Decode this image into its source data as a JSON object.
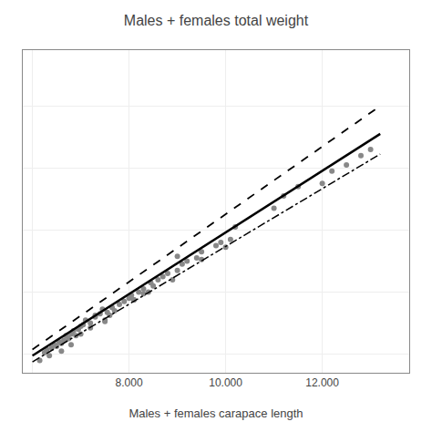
{
  "chart_data": {
    "type": "scatter",
    "title": "Males + females total weight",
    "xlabel": "Males + females carapace length",
    "grid": true,
    "tick_labels": "x",
    "xlim": [
      5800,
      13800
    ],
    "ylim": [
      5400,
      15800
    ],
    "xticks": [
      {
        "value": 6000,
        "label": null
      },
      {
        "value": 8000,
        "label": "8.000"
      },
      {
        "value": 10000,
        "label": "10.000"
      },
      {
        "value": 12000,
        "label": "12.000"
      }
    ],
    "yticks": [
      6000,
      8000,
      10000,
      12000,
      14000
    ],
    "series": [
      {
        "type": "scatter",
        "marker": "circle",
        "color": "#888888",
        "x": [
          6150,
          6250,
          6300,
          6350,
          6400,
          6450,
          6500,
          6550,
          6600,
          6650,
          6700,
          6750,
          6800,
          6850,
          6900,
          6950,
          7000,
          7050,
          7100,
          7200,
          7300,
          7400,
          7450,
          7500,
          7550,
          7600,
          7650,
          7700,
          7800,
          7900,
          8000,
          8050,
          8100,
          8200,
          8300,
          8400,
          8450,
          8500,
          8600,
          8700,
          8800,
          8900,
          9000,
          9100,
          9200,
          9400,
          9500,
          9800,
          9900,
          10100,
          10200,
          11000,
          11200,
          11500,
          12000,
          12200,
          12500,
          12800,
          6600,
          6800,
          7000,
          7200,
          7300,
          7500,
          8100,
          8300,
          9000,
          9500,
          10000,
          13000
        ],
        "values": [
          5800,
          6050,
          6150,
          5950,
          6200,
          6300,
          6250,
          6400,
          6350,
          6450,
          6600,
          6500,
          6650,
          6750,
          6600,
          6800,
          6900,
          6950,
          7100,
          7000,
          7200,
          7300,
          7450,
          7100,
          7350,
          7250,
          7500,
          7400,
          7600,
          7700,
          7800,
          7900,
          7750,
          8000,
          8100,
          8000,
          8300,
          8200,
          8400,
          8500,
          8600,
          8400,
          8700,
          8900,
          9000,
          9100,
          9300,
          9500,
          9600,
          9700,
          10100,
          10700,
          11100,
          11400,
          11500,
          11900,
          12100,
          12400,
          6100,
          6300,
          6650,
          6850,
          7250,
          7050,
          7750,
          7950,
          9150,
          9050,
          9450,
          12600
        ]
      },
      {
        "type": "line",
        "line_style": "solid",
        "color": "#000000",
        "x": [
          6000,
          13200
        ],
        "values": [
          5950,
          13100
        ]
      },
      {
        "type": "line",
        "line_style": "dashed",
        "color": "#000000",
        "x": [
          6000,
          13200
        ],
        "values": [
          6150,
          14000
        ]
      },
      {
        "type": "line",
        "line_style": "dashdot",
        "color": "#000000",
        "x": [
          6000,
          13200
        ],
        "values": [
          5750,
          12450
        ]
      }
    ]
  }
}
